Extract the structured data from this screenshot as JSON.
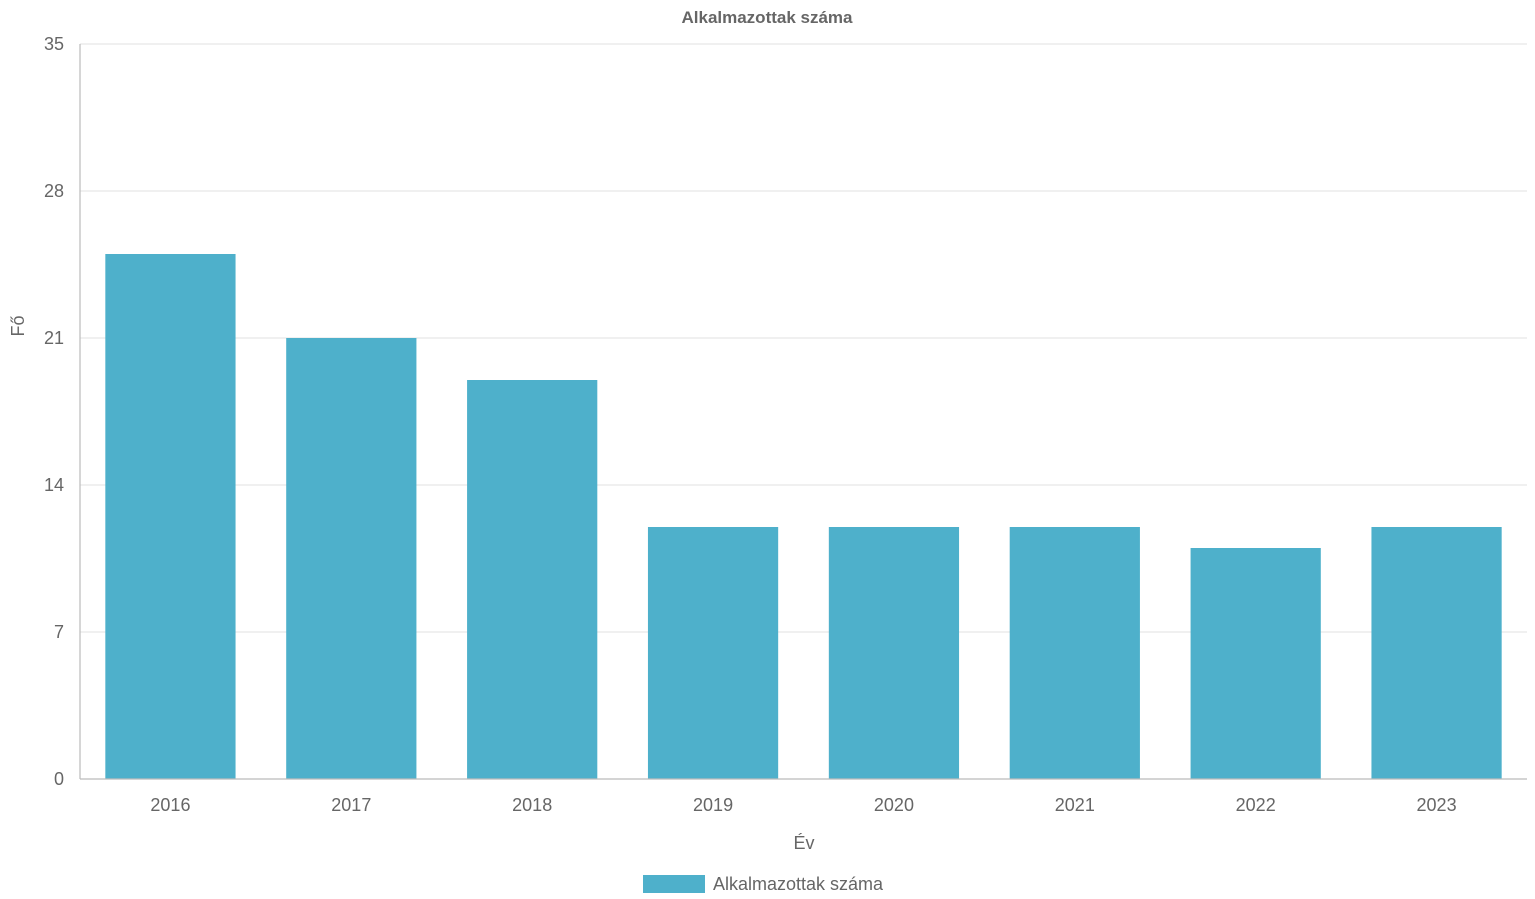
{
  "chart_data": {
    "type": "bar",
    "title": "Alkalmazottak száma",
    "xlabel": "Év",
    "ylabel": "Fő",
    "categories": [
      "2016",
      "2017",
      "2018",
      "2019",
      "2020",
      "2021",
      "2022",
      "2023"
    ],
    "series": [
      {
        "name": "Alkalmazottak száma",
        "values": [
          25,
          21,
          19,
          12,
          12,
          12,
          11,
          12
        ],
        "color": "#4eb0cb"
      }
    ],
    "ylim": [
      0,
      35
    ],
    "yticks": [
      0,
      7,
      14,
      21,
      28,
      35
    ],
    "grid": true,
    "legend_position": "bottom-center"
  }
}
